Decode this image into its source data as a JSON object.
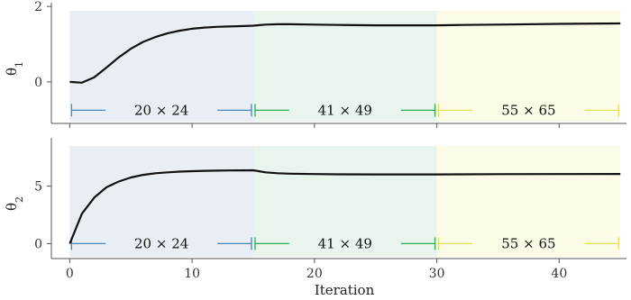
{
  "chart_data": {
    "type": "line",
    "shared_x": {
      "label": "Iteration",
      "range": [
        -1.5,
        45.5
      ],
      "ticks": [
        0,
        10,
        20,
        30,
        40
      ]
    },
    "regions": [
      {
        "x0": 0,
        "x1": 15,
        "label": "20 × 24",
        "band_color": "#e9eef5",
        "bracket_color": "#4a86b8"
      },
      {
        "x0": 15,
        "x1": 30,
        "label": "41 × 49",
        "band_color": "#e8f4ec",
        "bracket_color": "#2eaa55"
      },
      {
        "x0": 30,
        "x1": 45,
        "label": "55 × 65",
        "band_color": "#fbfbe8",
        "bracket_color": "#e2e25a"
      }
    ],
    "panels": [
      {
        "ylabel": "θ",
        "ylabel_sub": "1",
        "ylim": [
          -1.1,
          2.1
        ],
        "yticks": [
          0,
          2
        ],
        "bracket_y": -0.75,
        "series": {
          "color": "#111111",
          "x": [
            0,
            1,
            2,
            3,
            4,
            5,
            6,
            7,
            8,
            9,
            10,
            11,
            12,
            13,
            14,
            15,
            16,
            17,
            18,
            20,
            22,
            25,
            28,
            30,
            32,
            35,
            40,
            45
          ],
          "y": [
            0.0,
            -0.02,
            0.12,
            0.38,
            0.65,
            0.88,
            1.06,
            1.19,
            1.29,
            1.36,
            1.41,
            1.44,
            1.46,
            1.47,
            1.48,
            1.49,
            1.52,
            1.53,
            1.53,
            1.52,
            1.51,
            1.5,
            1.5,
            1.5,
            1.51,
            1.52,
            1.54,
            1.55
          ]
        }
      },
      {
        "ylabel": "θ",
        "ylabel_sub": "2",
        "ylim": [
          -1.3,
          9.2
        ],
        "yticks": [
          0,
          5
        ],
        "bracket_y": 0.0,
        "series": {
          "color": "#111111",
          "x": [
            0,
            1,
            2,
            3,
            4,
            5,
            6,
            7,
            8,
            9,
            10,
            11,
            12,
            13,
            14,
            15,
            16,
            17,
            18,
            20,
            22,
            25,
            28,
            30,
            32,
            35,
            40,
            45
          ],
          "y": [
            0.0,
            2.6,
            4.0,
            4.9,
            5.4,
            5.75,
            5.98,
            6.12,
            6.2,
            6.26,
            6.3,
            6.33,
            6.35,
            6.36,
            6.37,
            6.38,
            6.2,
            6.12,
            6.08,
            6.05,
            6.03,
            6.02,
            6.02,
            6.02,
            6.03,
            6.04,
            6.05,
            6.06
          ]
        }
      }
    ]
  }
}
